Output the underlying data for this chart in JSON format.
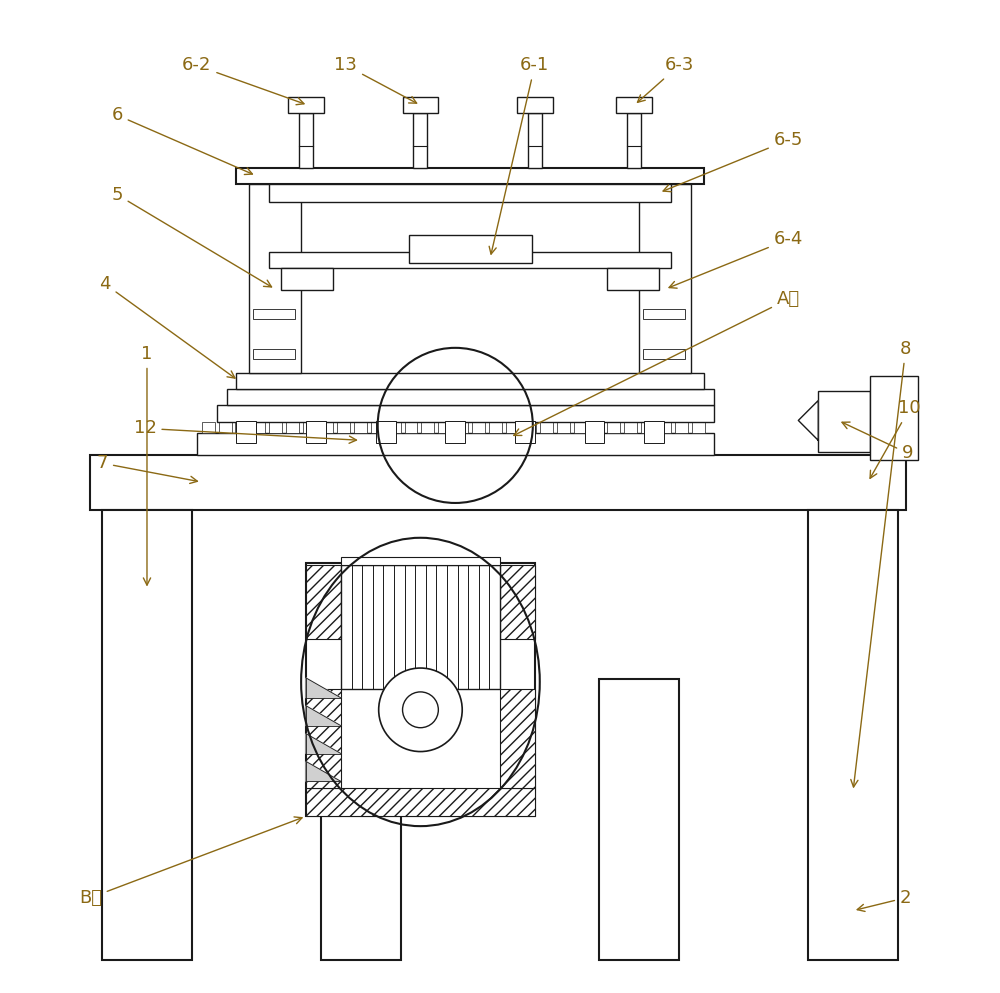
{
  "bg_color": "#ffffff",
  "line_color": "#1a1a1a",
  "label_color": "#8B6914",
  "fig_width": 10.0,
  "fig_height": 9.93,
  "lw": 1.0,
  "lw_thick": 1.5
}
